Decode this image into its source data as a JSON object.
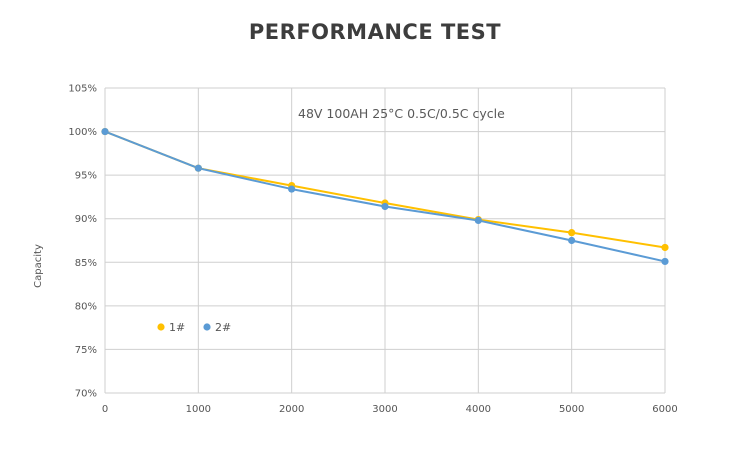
{
  "header": {
    "title": "PERFORMANCE TEST"
  },
  "chart_data": {
    "type": "line",
    "title": "PERFORMANCE TEST",
    "annotation": "48V 100AH 25°C 0.5C/0.5C cycle",
    "xlabel": "",
    "ylabel": "Capacity",
    "x": [
      0,
      1000,
      2000,
      3000,
      4000,
      5000,
      6000
    ],
    "xlim": [
      0,
      6000
    ],
    "ylim": [
      70,
      105
    ],
    "x_ticks": [
      0,
      1000,
      2000,
      3000,
      4000,
      5000,
      6000
    ],
    "x_tick_labels": [
      "0",
      "1000",
      "2000",
      "3000",
      "4000",
      "5000",
      "6000"
    ],
    "y_ticks": [
      70,
      75,
      80,
      85,
      90,
      95,
      100,
      105
    ],
    "y_tick_labels": [
      "70%",
      "75%",
      "80%",
      "85%",
      "90%",
      "95%",
      "100%",
      "105%"
    ],
    "grid": true,
    "legend_position": "bottom-left",
    "series": [
      {
        "name": "1#",
        "color": "#ffc000",
        "values": [
          100,
          95.8,
          93.8,
          91.8,
          89.9,
          88.4,
          86.7
        ]
      },
      {
        "name": "2#",
        "color": "#5b9bd5",
        "values": [
          100,
          95.8,
          93.4,
          91.4,
          89.8,
          87.5,
          85.1
        ]
      }
    ]
  }
}
